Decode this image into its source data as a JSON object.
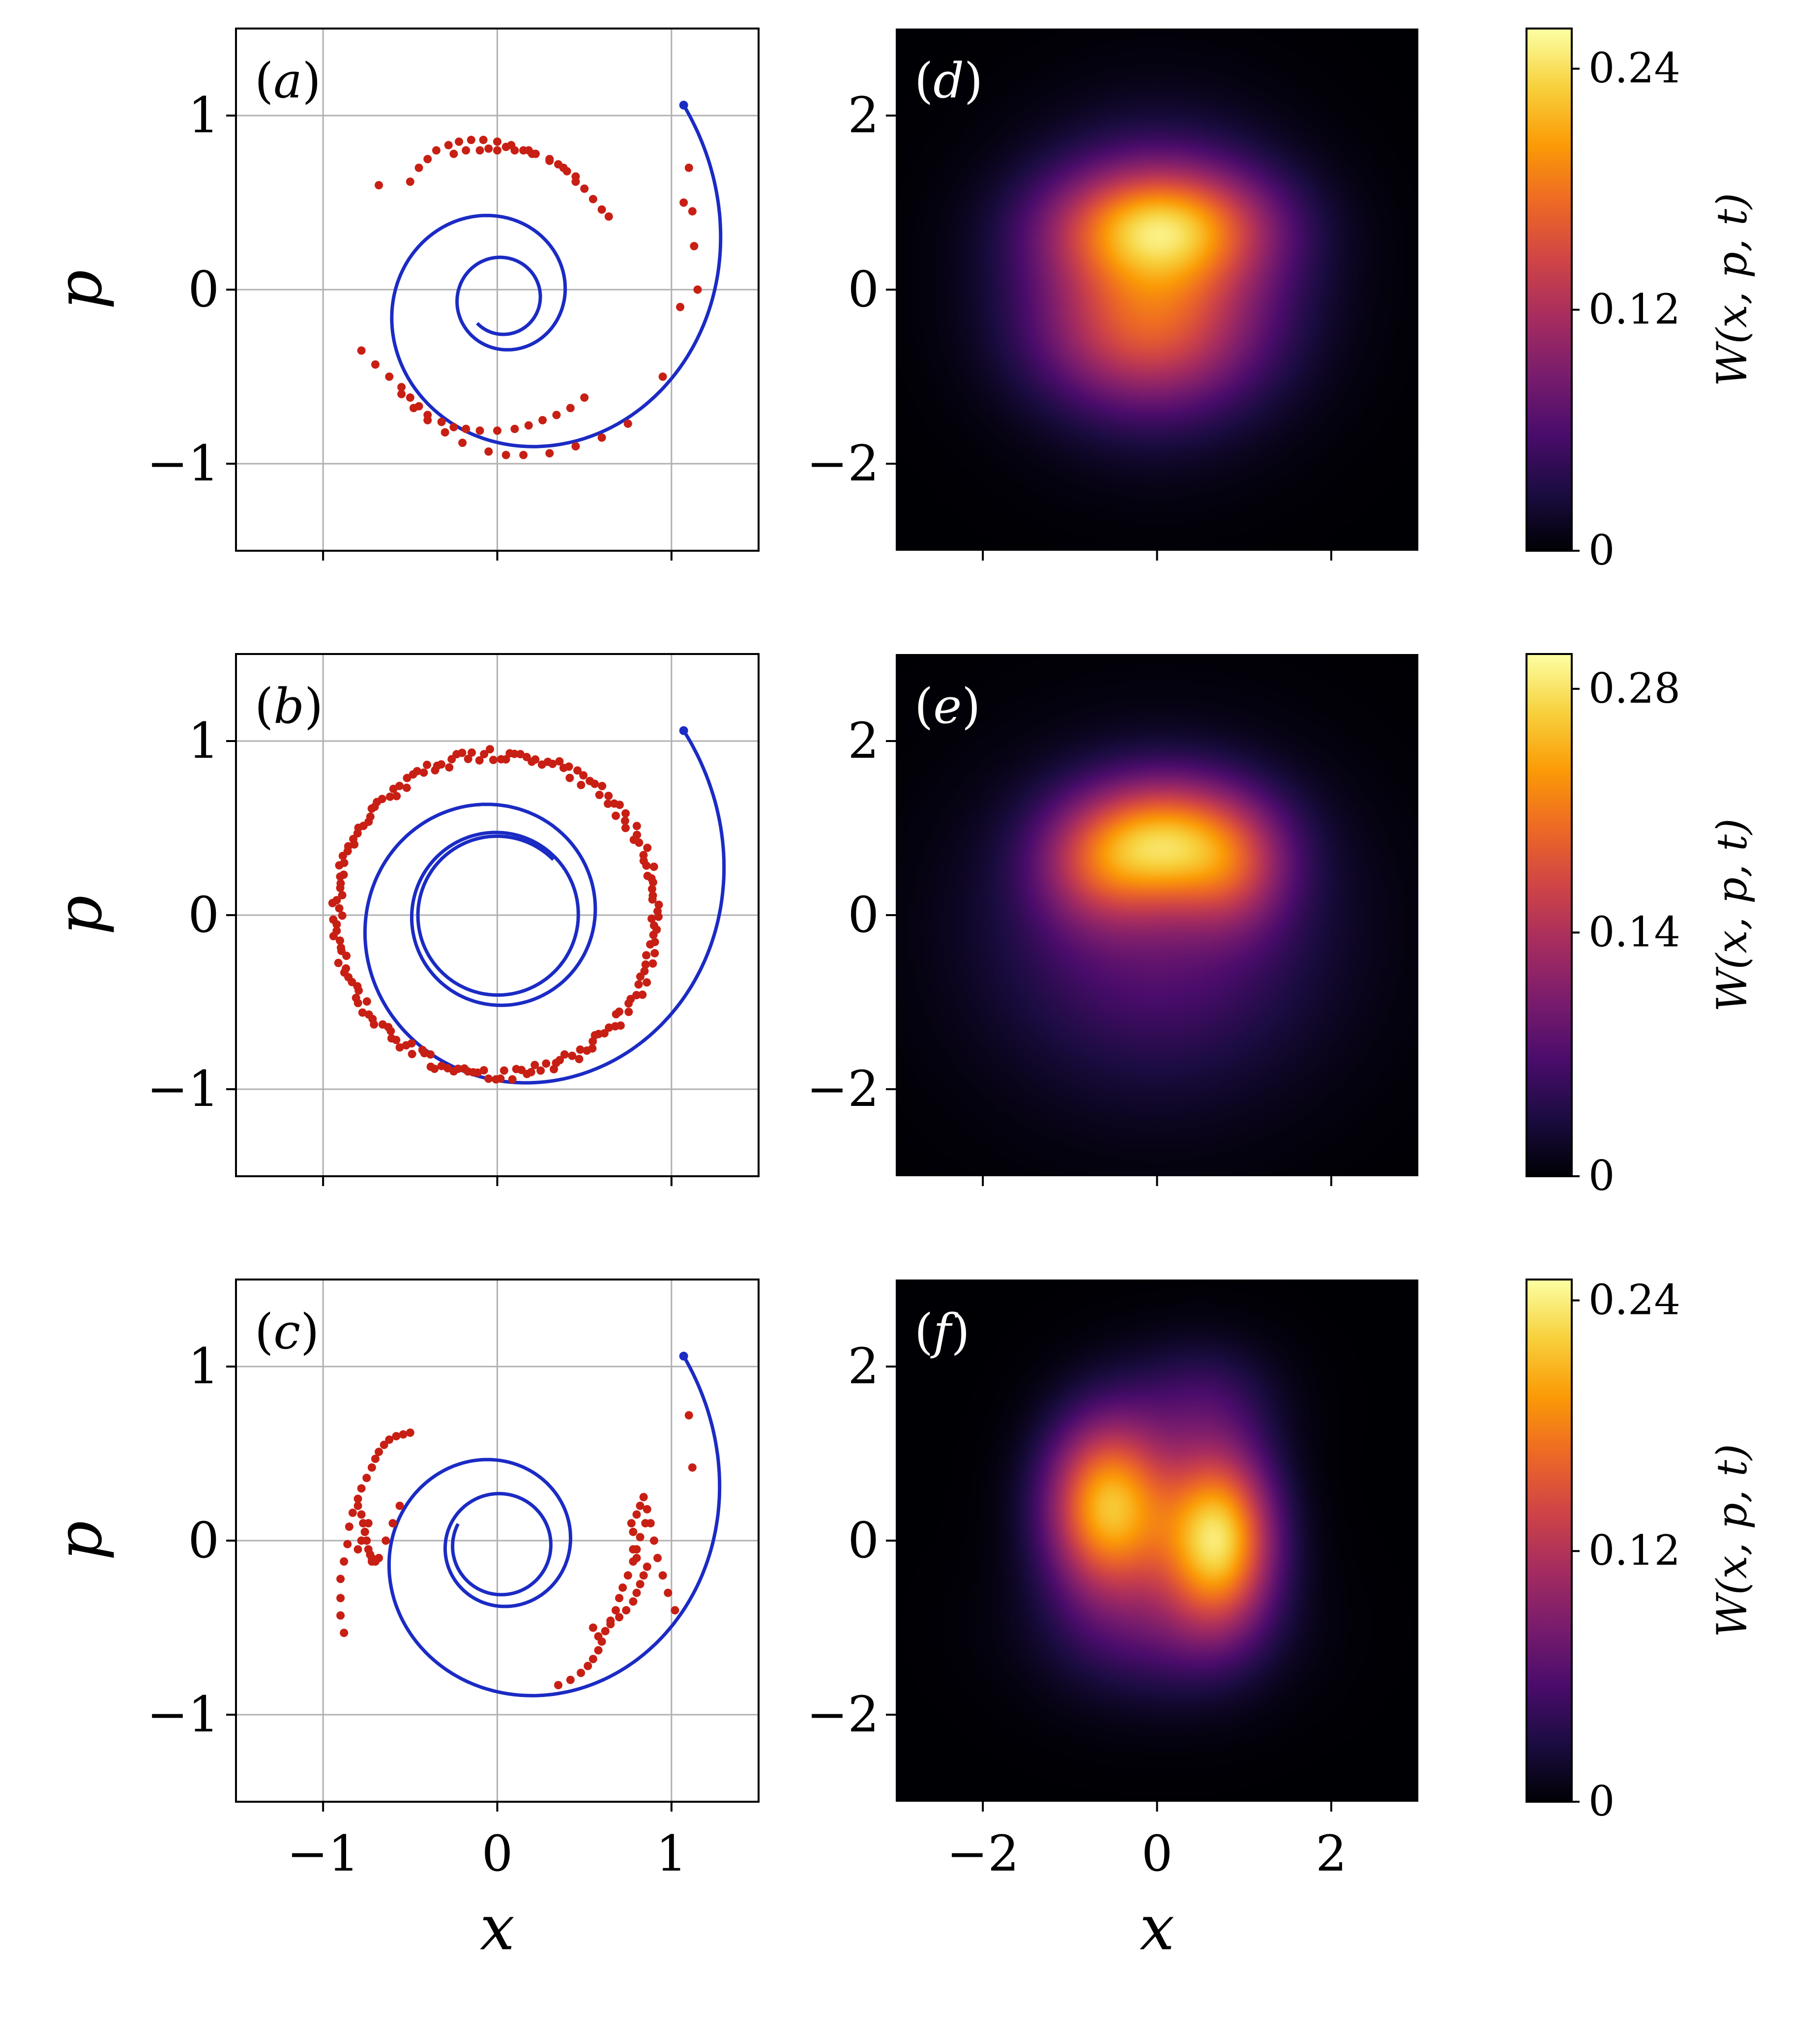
{
  "figure": {
    "colors": {
      "curve": "#1b2bc4",
      "points": "#c81f14",
      "grid": "#b0b0b0",
      "axis": "#000000",
      "panel_label_dark": "#000000",
      "panel_label_light": "#ffffff",
      "cmap": [
        "#000004",
        "#1b0c41",
        "#4a0c6b",
        "#781c6d",
        "#a52c60",
        "#cf4446",
        "#ed6925",
        "#fb9b06",
        "#f7d13d",
        "#fcffa4"
      ]
    }
  },
  "chart_data": [
    {
      "type": "line+scatter",
      "panel_label": "a",
      "xlabel": "",
      "ylabel": "p",
      "xlim": [
        -1.5,
        1.5
      ],
      "ylim": [
        -1.5,
        1.5
      ],
      "xticks": [
        -1,
        0,
        1
      ],
      "yticks": [
        -1,
        0,
        1
      ],
      "xtick_labels": [
        "",
        "",
        ""
      ],
      "ytick_labels": [
        "−1",
        "0",
        "1"
      ],
      "grid": true,
      "series": [
        {
          "name": "trajectory",
          "kind": "spiral",
          "start": [
            1.07,
            1.06
          ],
          "r_center": 0.19,
          "decay_time": 0.55,
          "turns": 2.5,
          "x_offset": 0.03,
          "y_offset": -0.05
        },
        {
          "name": "samples",
          "kind": "points",
          "x": [
            -0.68,
            -0.5,
            -0.45,
            -0.4,
            -0.35,
            -0.28,
            -0.22,
            -0.15,
            -0.08,
            0.0,
            0.08,
            0.15,
            0.22,
            0.3,
            0.38,
            0.45,
            0.5,
            0.55,
            0.6,
            0.64,
            0.0,
            -0.1,
            0.1,
            0.2,
            0.3,
            0.35,
            0.4,
            0.45,
            -0.25,
            -0.18,
            -0.05,
            0.05,
            0.18,
            -0.78,
            -0.7,
            -0.62,
            -0.55,
            -0.5,
            -0.45,
            -0.4,
            -0.32,
            -0.25,
            -0.18,
            -0.1,
            0.0,
            0.1,
            0.18,
            0.26,
            0.34,
            0.42,
            0.5,
            -0.55,
            -0.48,
            -0.4,
            -0.3,
            -0.2,
            -0.05,
            0.05,
            0.15,
            0.3,
            0.45,
            0.6,
            0.75,
            0.95,
            1.05,
            1.07,
            1.1,
            1.12,
            1.13,
            1.15
          ],
          "y": [
            0.6,
            0.62,
            0.7,
            0.75,
            0.8,
            0.83,
            0.85,
            0.86,
            0.86,
            0.85,
            0.83,
            0.8,
            0.78,
            0.75,
            0.7,
            0.65,
            0.58,
            0.52,
            0.46,
            0.42,
            0.8,
            0.8,
            0.8,
            0.78,
            0.74,
            0.72,
            0.68,
            0.62,
            0.78,
            0.8,
            0.81,
            0.82,
            0.8,
            -0.35,
            -0.43,
            -0.5,
            -0.56,
            -0.62,
            -0.67,
            -0.72,
            -0.76,
            -0.79,
            -0.8,
            -0.81,
            -0.81,
            -0.8,
            -0.78,
            -0.75,
            -0.72,
            -0.68,
            -0.62,
            -0.6,
            -0.68,
            -0.75,
            -0.82,
            -0.88,
            -0.93,
            -0.95,
            -0.95,
            -0.94,
            -0.9,
            -0.85,
            -0.77,
            -0.5,
            -0.1,
            0.5,
            0.7,
            0.45,
            0.25,
            0.0
          ]
        }
      ]
    },
    {
      "type": "line+scatter",
      "panel_label": "b",
      "xlabel": "",
      "ylabel": "p",
      "xlim": [
        -1.5,
        1.5
      ],
      "ylim": [
        -1.5,
        1.5
      ],
      "xticks": [
        -1,
        0,
        1
      ],
      "yticks": [
        -1,
        0,
        1
      ],
      "xtick_labels": [
        "",
        "",
        ""
      ],
      "ytick_labels": [
        "−1",
        "0",
        "1"
      ],
      "grid": true,
      "series": [
        {
          "name": "trajectory",
          "kind": "spiral",
          "start": [
            1.07,
            1.06
          ],
          "r_center": 0.45,
          "decay_time": 0.5,
          "turns": 3.0,
          "x_offset": 0.0,
          "y_offset": 0.0
        },
        {
          "name": "samples",
          "kind": "ring",
          "radius": 0.92,
          "count": 190,
          "jitter": 0.035
        }
      ]
    },
    {
      "type": "line+scatter",
      "panel_label": "c",
      "xlabel": "x",
      "ylabel": "p",
      "xlim": [
        -1.5,
        1.5
      ],
      "ylim": [
        -1.5,
        1.5
      ],
      "xticks": [
        -1,
        0,
        1
      ],
      "yticks": [
        -1,
        0,
        1
      ],
      "xtick_labels": [
        "−1",
        "0",
        "1"
      ],
      "ytick_labels": [
        "−1",
        "0",
        "1"
      ],
      "grid": true,
      "series": [
        {
          "name": "trajectory",
          "kind": "spiral",
          "start": [
            1.07,
            1.06
          ],
          "r_center": 0.27,
          "decay_time": 0.5,
          "turns": 2.7,
          "x_offset": 0.02,
          "y_offset": -0.03
        },
        {
          "name": "samples",
          "kind": "points",
          "x": [
            -0.88,
            -0.9,
            -0.9,
            -0.9,
            -0.88,
            -0.86,
            -0.85,
            -0.83,
            -0.8,
            -0.78,
            -0.75,
            -0.72,
            -0.7,
            -0.68,
            -0.65,
            -0.62,
            -0.58,
            -0.54,
            -0.5,
            -0.8,
            -0.78,
            -0.77,
            -0.76,
            -0.75,
            -0.74,
            -0.72,
            -0.7,
            -0.68,
            -0.64,
            -0.6,
            -0.56,
            -0.8,
            -0.78,
            -0.76,
            -0.74,
            -0.73,
            -0.72,
            0.35,
            0.42,
            0.48,
            0.52,
            0.55,
            0.58,
            0.6,
            0.62,
            0.65,
            0.68,
            0.7,
            0.72,
            0.75,
            0.78,
            0.8,
            0.82,
            0.85,
            0.55,
            0.58,
            0.62,
            0.65,
            0.7,
            0.74,
            0.78,
            0.8,
            0.82,
            0.84,
            0.86,
            0.8,
            0.78,
            0.78,
            0.77,
            0.8,
            0.82,
            0.84,
            0.86,
            0.88,
            0.9,
            0.92,
            0.95,
            0.98,
            1.02,
            1.1,
            1.12
          ],
          "y": [
            -0.53,
            -0.43,
            -0.33,
            -0.22,
            -0.12,
            -0.02,
            0.08,
            0.16,
            0.24,
            0.3,
            0.36,
            0.42,
            0.47,
            0.51,
            0.55,
            0.58,
            0.6,
            0.61,
            0.62,
            0.2,
            0.15,
            0.1,
            0.05,
            0.0,
            -0.05,
            -0.1,
            -0.12,
            -0.1,
            0.0,
            0.1,
            0.2,
            -0.05,
            0.0,
            0.05,
            0.1,
            -0.08,
            -0.12,
            -0.83,
            -0.8,
            -0.76,
            -0.72,
            -0.68,
            -0.63,
            -0.58,
            -0.52,
            -0.46,
            -0.4,
            -0.33,
            -0.27,
            -0.2,
            -0.12,
            -0.05,
            0.02,
            0.1,
            -0.5,
            -0.55,
            -0.52,
            -0.48,
            -0.44,
            -0.4,
            -0.35,
            -0.3,
            -0.25,
            -0.2,
            -0.15,
            -0.1,
            -0.05,
            0.05,
            0.1,
            0.15,
            0.2,
            0.25,
            0.18,
            0.1,
            0.0,
            -0.1,
            -0.2,
            -0.3,
            -0.4,
            0.72,
            0.42
          ]
        }
      ]
    },
    {
      "type": "heatmap",
      "panel_label": "d",
      "xlabel": "",
      "ylabel": "",
      "xlim": [
        -3,
        3
      ],
      "ylim": [
        -3,
        3
      ],
      "xticks": [
        -2,
        0,
        2
      ],
      "yticks": [
        -2,
        0,
        2
      ],
      "xtick_labels": [
        "",
        "",
        ""
      ],
      "ytick_labels": [
        "−2",
        "0",
        "2"
      ],
      "cmap": "inferno",
      "vmin": 0,
      "vmax": 0.26,
      "blobs": [
        {
          "x": 0.0,
          "y": 0.1,
          "sx": 1.0,
          "sy": 1.0,
          "amp": 0.14
        },
        {
          "x": 0.05,
          "y": 0.75,
          "sx": 0.85,
          "sy": 0.45,
          "amp": 0.13
        },
        {
          "x": -0.2,
          "y": -0.6,
          "sx": 0.85,
          "sy": 0.55,
          "amp": 0.05
        }
      ],
      "colorbar": {
        "label": "W(x, p, t)",
        "ticks": [
          0,
          0.12,
          0.24
        ],
        "tick_labels": [
          "0",
          "0.12",
          "0.24"
        ]
      }
    },
    {
      "type": "heatmap",
      "panel_label": "e",
      "xlabel": "",
      "ylabel": "",
      "xlim": [
        -3,
        3
      ],
      "ylim": [
        -3,
        3
      ],
      "xticks": [
        -2,
        0,
        2
      ],
      "yticks": [
        -2,
        0,
        2
      ],
      "xtick_labels": [
        "",
        "",
        ""
      ],
      "ytick_labels": [
        "−2",
        "0",
        "2"
      ],
      "cmap": "inferno",
      "vmin": 0,
      "vmax": 0.3,
      "blobs": [
        {
          "x": 0.1,
          "y": 0.85,
          "sx": 0.75,
          "sy": 0.5,
          "amp": 0.2
        },
        {
          "x": -0.7,
          "y": 0.5,
          "sx": 0.5,
          "sy": 0.5,
          "amp": 0.06
        },
        {
          "x": 0.9,
          "y": 0.45,
          "sx": 0.45,
          "sy": 0.5,
          "amp": 0.06
        },
        {
          "x": 0.0,
          "y": -0.2,
          "sx": 1.3,
          "sy": 1.2,
          "amp": 0.08
        }
      ],
      "colorbar": {
        "label": "W(x, p, t)",
        "ticks": [
          0,
          0.14,
          0.28
        ],
        "tick_labels": [
          "0",
          "0.14",
          "0.28"
        ]
      }
    },
    {
      "type": "heatmap",
      "panel_label": "f",
      "xlabel": "x",
      "ylabel": "",
      "xlim": [
        -3,
        3
      ],
      "ylim": [
        -3,
        3
      ],
      "xticks": [
        -2,
        0,
        2
      ],
      "yticks": [
        -2,
        0,
        2
      ],
      "xtick_labels": [
        "−2",
        "0",
        "2"
      ],
      "ytick_labels": [
        "−2",
        "0",
        "2"
      ],
      "cmap": "inferno",
      "vmin": 0,
      "vmax": 0.25,
      "blobs": [
        {
          "x": -0.55,
          "y": 0.4,
          "sx": 0.5,
          "sy": 0.7,
          "amp": 0.21
        },
        {
          "x": 0.7,
          "y": 0.05,
          "sx": 0.45,
          "sy": 0.7,
          "amp": 0.22
        },
        {
          "x": 0.5,
          "y": 1.6,
          "sx": 0.6,
          "sy": 0.5,
          "amp": 0.04
        },
        {
          "x": 0.0,
          "y": -1.0,
          "sx": 0.9,
          "sy": 0.6,
          "amp": 0.05
        }
      ],
      "colorbar": {
        "label": "W(x, p, t)",
        "ticks": [
          0,
          0.12,
          0.24
        ],
        "tick_labels": [
          "0",
          "0.12",
          "0.24"
        ]
      }
    }
  ]
}
